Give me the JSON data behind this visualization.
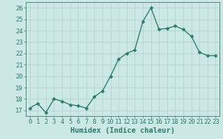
{
  "x": [
    0,
    1,
    2,
    3,
    4,
    5,
    6,
    7,
    8,
    9,
    10,
    11,
    12,
    13,
    14,
    15,
    16,
    17,
    18,
    19,
    20,
    21,
    22,
    23
  ],
  "y": [
    17.2,
    17.6,
    16.8,
    18.0,
    17.8,
    17.5,
    17.4,
    17.2,
    18.2,
    18.7,
    20.0,
    21.5,
    22.0,
    22.3,
    24.8,
    26.0,
    24.1,
    24.2,
    24.4,
    24.1,
    23.5,
    22.1,
    21.8,
    21.8
  ],
  "line_color": "#2d7a6e",
  "marker": "D",
  "marker_size": 2.5,
  "line_width": 1.0,
  "bg_color": "#cce8e4",
  "grid_color": "#b0d4cf",
  "xlabel": "Humidex (Indice chaleur)",
  "xlim": [
    -0.5,
    23.5
  ],
  "ylim": [
    16.5,
    26.5
  ],
  "xticks": [
    0,
    1,
    2,
    3,
    4,
    5,
    6,
    7,
    8,
    9,
    10,
    11,
    12,
    13,
    14,
    15,
    16,
    17,
    18,
    19,
    20,
    21,
    22,
    23
  ],
  "yticks": [
    17,
    18,
    19,
    20,
    21,
    22,
    23,
    24,
    25,
    26
  ],
  "tick_label_fontsize": 6.5,
  "xlabel_fontsize": 7.5
}
